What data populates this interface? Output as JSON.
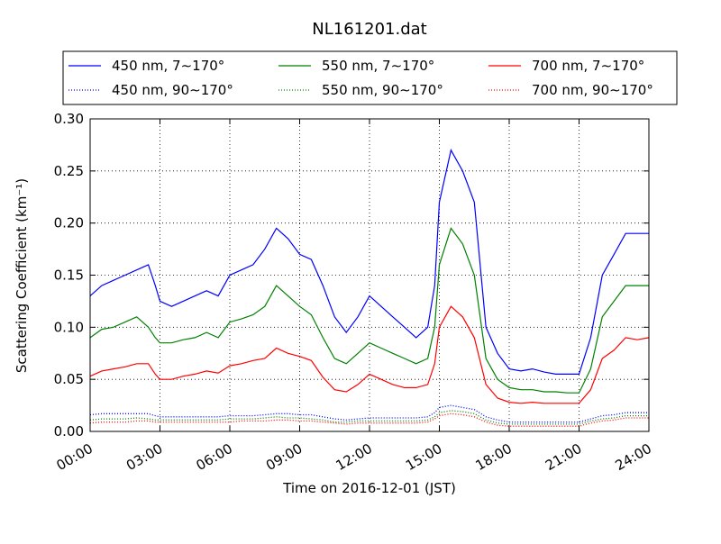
{
  "chart_data": {
    "type": "line",
    "title": "NL161201.dat",
    "xlabel": "Time on 2016-12-01 (JST)",
    "ylabel": "Scattering Coefficient (km⁻¹)",
    "xlim": [
      0,
      24
    ],
    "ylim": [
      0.0,
      0.3
    ],
    "xticks": [
      0,
      3,
      6,
      9,
      12,
      15,
      18,
      21,
      24
    ],
    "xtick_labels": [
      "00:00",
      "03:00",
      "06:00",
      "09:00",
      "12:00",
      "15:00",
      "18:00",
      "21:00",
      "24:00"
    ],
    "yticks": [
      0.0,
      0.05,
      0.1,
      0.15,
      0.2,
      0.25,
      0.3
    ],
    "ytick_labels": [
      "0.00",
      "0.05",
      "0.10",
      "0.15",
      "0.20",
      "0.25",
      "0.30"
    ],
    "grid": true,
    "legend_position": "top, above plot, 3 columns",
    "x": [
      0,
      0.5,
      1,
      1.5,
      2,
      2.5,
      2.8,
      3,
      3.5,
      4,
      4.5,
      5,
      5.5,
      6,
      6.5,
      7,
      7.5,
      8,
      8.5,
      9,
      9.5,
      10,
      10.5,
      11,
      11.5,
      12,
      12.5,
      13,
      13.5,
      14,
      14.5,
      14.8,
      15,
      15.5,
      16,
      16.5,
      17,
      17.5,
      18,
      18.5,
      19,
      19.5,
      20,
      20.5,
      21,
      21.5,
      22,
      22.5,
      23,
      23.5,
      24
    ],
    "series": [
      {
        "name": "450 nm, 7∼170°",
        "color": "#0000ff",
        "style": "solid",
        "values": [
          0.13,
          0.14,
          0.145,
          0.15,
          0.155,
          0.16,
          0.14,
          0.125,
          0.12,
          0.125,
          0.13,
          0.135,
          0.13,
          0.15,
          0.155,
          0.16,
          0.175,
          0.195,
          0.185,
          0.17,
          0.165,
          0.14,
          0.11,
          0.095,
          0.11,
          0.13,
          0.12,
          0.11,
          0.1,
          0.09,
          0.1,
          0.14,
          0.22,
          0.27,
          0.25,
          0.22,
          0.1,
          0.075,
          0.06,
          0.058,
          0.06,
          0.057,
          0.055,
          0.055,
          0.055,
          0.09,
          0.15,
          0.17,
          0.19,
          0.19,
          0.19
        ]
      },
      {
        "name": "550 nm, 7∼170°",
        "color": "#008000",
        "style": "solid",
        "values": [
          0.09,
          0.098,
          0.1,
          0.105,
          0.11,
          0.1,
          0.09,
          0.085,
          0.085,
          0.088,
          0.09,
          0.095,
          0.09,
          0.105,
          0.108,
          0.112,
          0.12,
          0.14,
          0.13,
          0.12,
          0.112,
          0.09,
          0.07,
          0.065,
          0.075,
          0.085,
          0.08,
          0.075,
          0.07,
          0.065,
          0.07,
          0.1,
          0.16,
          0.195,
          0.18,
          0.15,
          0.07,
          0.05,
          0.042,
          0.04,
          0.04,
          0.038,
          0.038,
          0.037,
          0.037,
          0.06,
          0.11,
          0.125,
          0.14,
          0.14,
          0.14
        ]
      },
      {
        "name": "700 nm, 7∼170°",
        "color": "#ff0000",
        "style": "solid",
        "values": [
          0.053,
          0.058,
          0.06,
          0.062,
          0.065,
          0.065,
          0.055,
          0.05,
          0.05,
          0.053,
          0.055,
          0.058,
          0.056,
          0.063,
          0.065,
          0.068,
          0.07,
          0.08,
          0.075,
          0.072,
          0.068,
          0.052,
          0.04,
          0.038,
          0.045,
          0.055,
          0.05,
          0.045,
          0.042,
          0.042,
          0.045,
          0.065,
          0.1,
          0.12,
          0.11,
          0.09,
          0.045,
          0.032,
          0.028,
          0.027,
          0.028,
          0.027,
          0.027,
          0.027,
          0.027,
          0.04,
          0.07,
          0.078,
          0.09,
          0.088,
          0.09
        ]
      },
      {
        "name": "450 nm, 90∼170°",
        "color": "#0000ff",
        "style": "dotted",
        "values": [
          0.016,
          0.017,
          0.017,
          0.017,
          0.017,
          0.017,
          0.015,
          0.014,
          0.014,
          0.014,
          0.014,
          0.014,
          0.014,
          0.015,
          0.015,
          0.015,
          0.016,
          0.017,
          0.017,
          0.016,
          0.016,
          0.014,
          0.012,
          0.011,
          0.012,
          0.013,
          0.013,
          0.013,
          0.013,
          0.013,
          0.014,
          0.018,
          0.023,
          0.025,
          0.023,
          0.021,
          0.014,
          0.011,
          0.009,
          0.009,
          0.009,
          0.009,
          0.009,
          0.009,
          0.009,
          0.012,
          0.015,
          0.016,
          0.018,
          0.018,
          0.018
        ]
      },
      {
        "name": "550 nm, 90∼170°",
        "color": "#008000",
        "style": "dotted",
        "values": [
          0.011,
          0.012,
          0.012,
          0.012,
          0.013,
          0.012,
          0.011,
          0.011,
          0.011,
          0.011,
          0.011,
          0.011,
          0.011,
          0.012,
          0.012,
          0.012,
          0.013,
          0.014,
          0.013,
          0.013,
          0.012,
          0.011,
          0.009,
          0.009,
          0.01,
          0.01,
          0.01,
          0.01,
          0.01,
          0.01,
          0.011,
          0.014,
          0.018,
          0.02,
          0.019,
          0.017,
          0.011,
          0.008,
          0.007,
          0.007,
          0.007,
          0.007,
          0.007,
          0.007,
          0.007,
          0.01,
          0.012,
          0.013,
          0.015,
          0.015,
          0.015
        ]
      },
      {
        "name": "700 nm, 90∼170°",
        "color": "#ff0000",
        "style": "dotted",
        "values": [
          0.008,
          0.009,
          0.009,
          0.009,
          0.01,
          0.01,
          0.009,
          0.009,
          0.009,
          0.009,
          0.009,
          0.009,
          0.009,
          0.009,
          0.01,
          0.01,
          0.01,
          0.011,
          0.011,
          0.01,
          0.01,
          0.009,
          0.008,
          0.007,
          0.008,
          0.008,
          0.008,
          0.008,
          0.008,
          0.008,
          0.009,
          0.012,
          0.015,
          0.017,
          0.016,
          0.014,
          0.009,
          0.006,
          0.005,
          0.005,
          0.005,
          0.005,
          0.005,
          0.005,
          0.005,
          0.008,
          0.01,
          0.011,
          0.013,
          0.013,
          0.013
        ]
      }
    ]
  }
}
